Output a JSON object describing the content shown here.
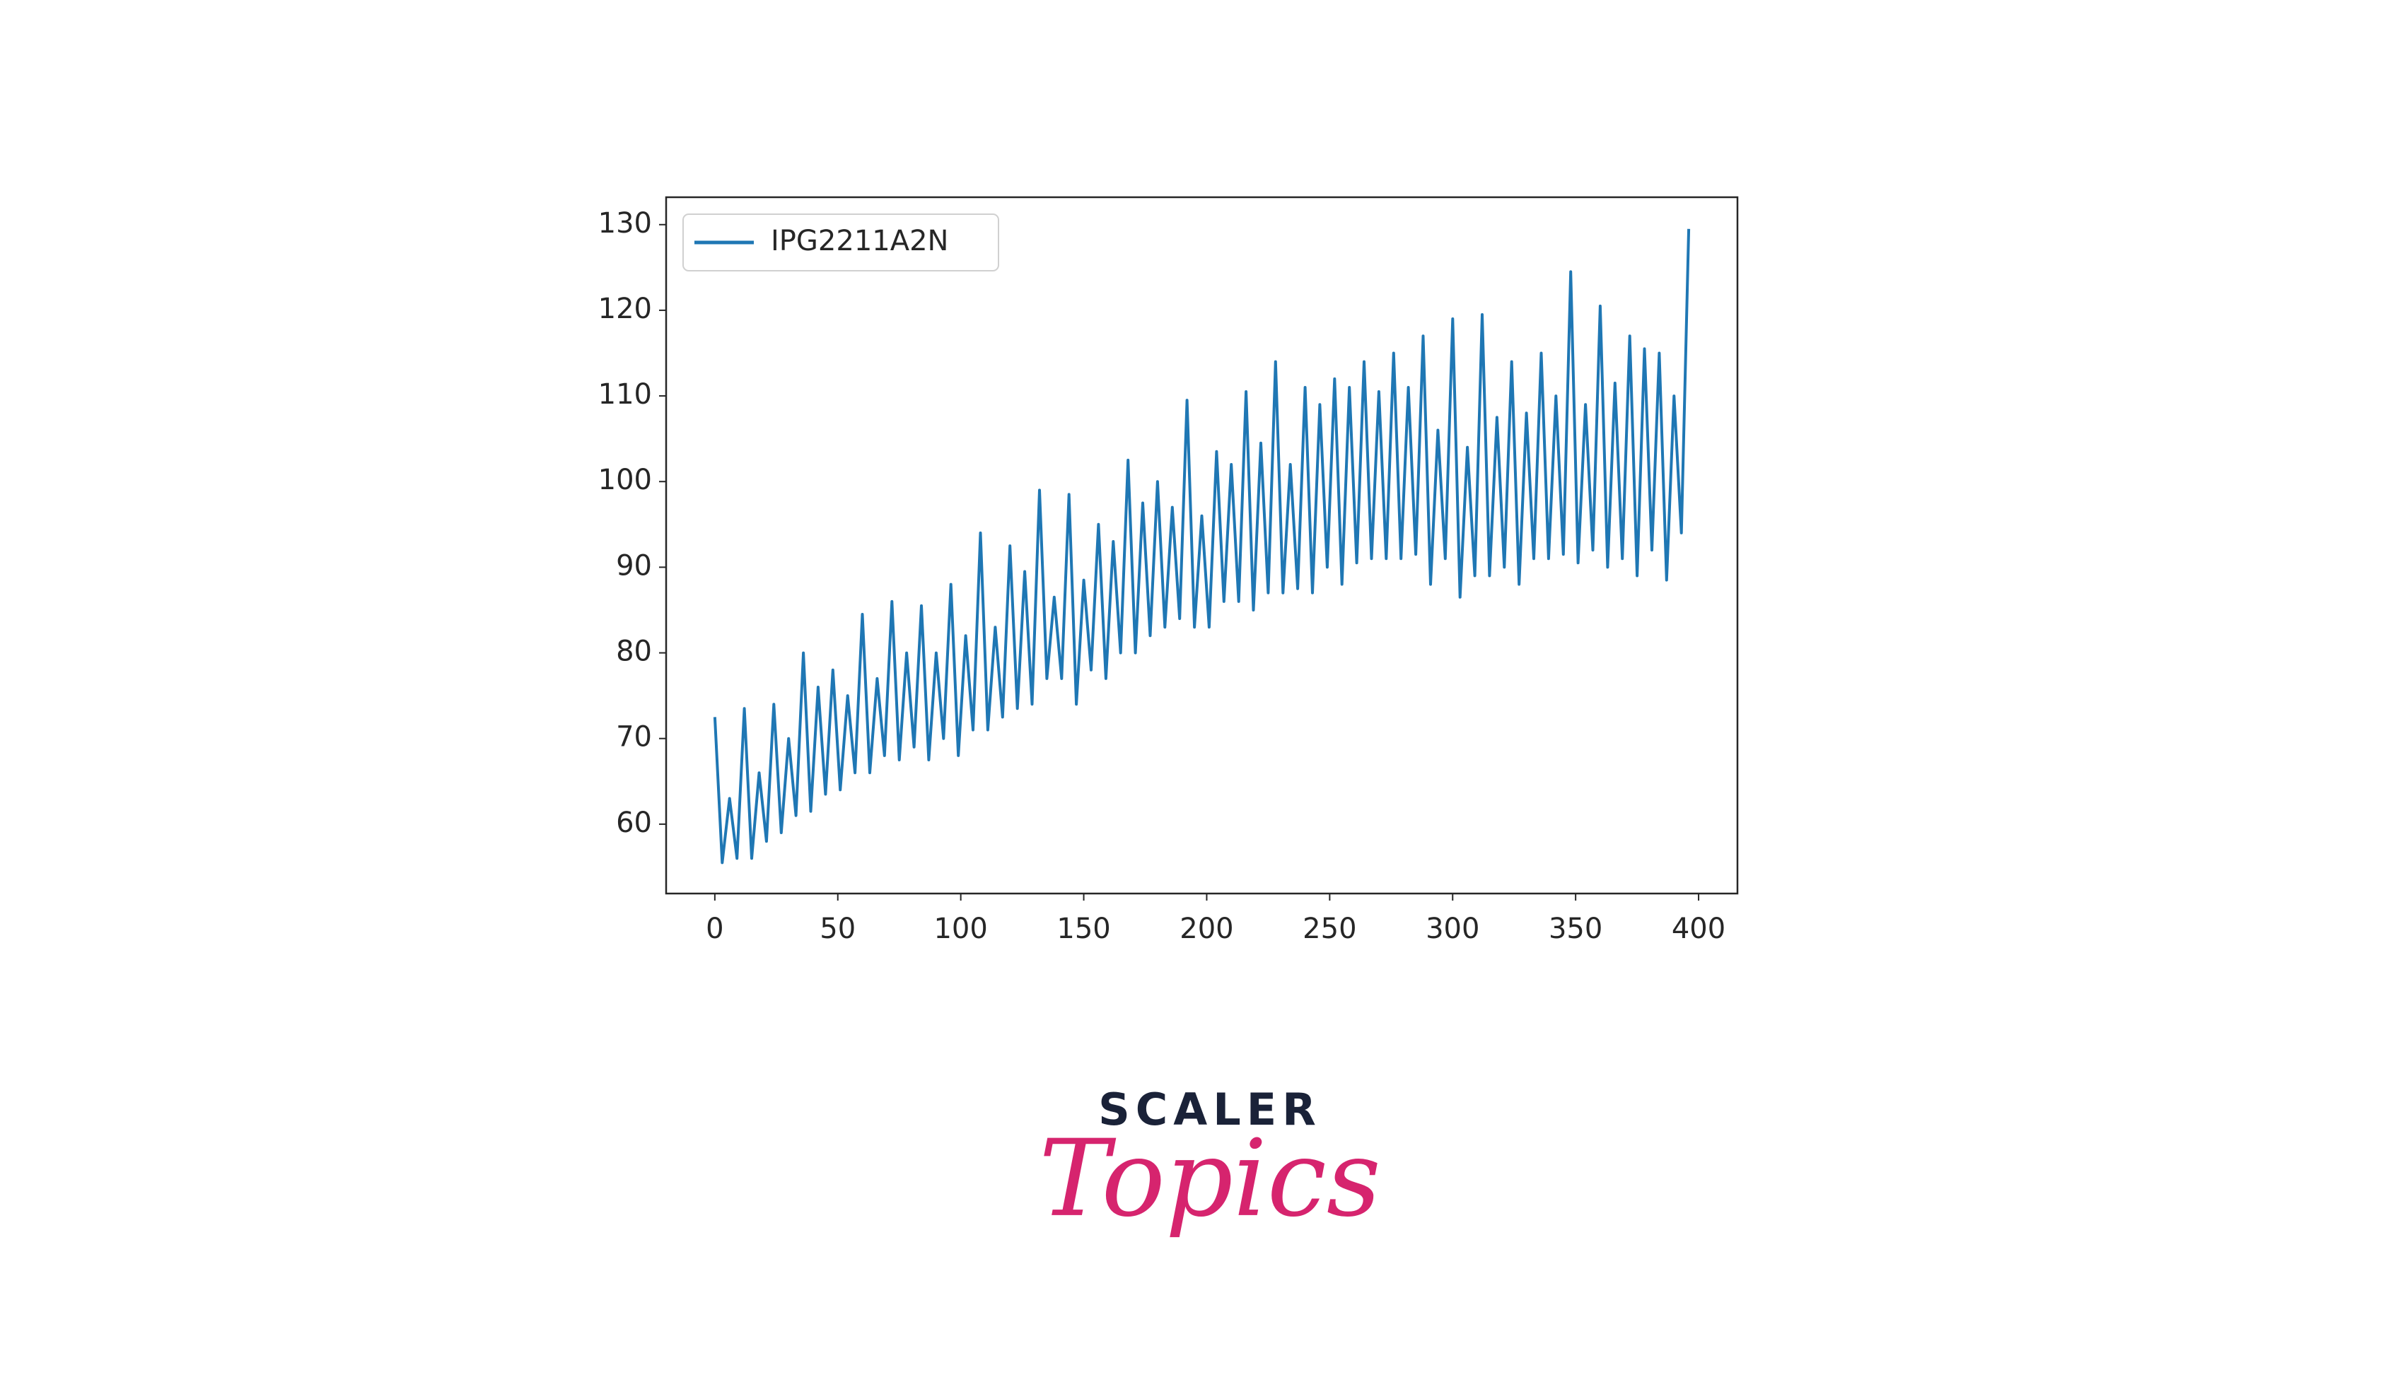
{
  "chart_data": {
    "type": "line",
    "x": [
      0,
      3,
      6,
      9,
      12,
      15,
      18,
      21,
      24,
      27,
      30,
      33,
      36,
      39,
      42,
      45,
      48,
      51,
      54,
      57,
      60,
      63,
      66,
      69,
      72,
      75,
      78,
      81,
      84,
      87,
      90,
      93,
      96,
      99,
      102,
      105,
      108,
      111,
      114,
      117,
      120,
      123,
      126,
      129,
      132,
      135,
      138,
      141,
      144,
      147,
      150,
      153,
      156,
      159,
      162,
      165,
      168,
      171,
      174,
      177,
      180,
      183,
      186,
      189,
      192,
      195,
      198,
      201,
      204,
      207,
      210,
      213,
      216,
      219,
      222,
      225,
      228,
      231,
      234,
      237,
      240,
      243,
      246,
      249,
      252,
      255,
      258,
      261,
      264,
      267,
      270,
      273,
      276,
      279,
      282,
      285,
      288,
      291,
      294,
      297,
      300,
      303,
      306,
      309,
      312,
      315,
      318,
      321,
      324,
      327,
      330,
      333,
      336,
      339,
      342,
      345,
      348,
      351,
      354,
      357,
      360,
      363,
      366,
      369,
      372,
      375,
      378,
      381,
      384,
      387,
      390,
      393,
      396
    ],
    "series": [
      {
        "name": "IPG2211A2N",
        "color": "#1f77b4",
        "values": [
          72.5,
          55.5,
          63,
          56,
          73.5,
          56,
          66,
          58,
          74,
          59,
          70,
          61,
          80,
          61.5,
          76,
          63.5,
          78,
          64,
          75,
          66,
          84.5,
          66,
          77,
          68,
          86,
          67.5,
          80,
          69,
          85.5,
          67.5,
          80,
          70,
          88,
          68,
          82,
          71,
          94,
          71,
          83,
          72.5,
          92.5,
          73.5,
          89.5,
          74,
          99,
          77,
          86.5,
          77,
          98.5,
          74,
          88.5,
          78,
          95,
          77,
          93,
          80,
          102.5,
          80,
          97.5,
          82,
          100,
          83,
          97,
          84,
          109.5,
          83,
          96,
          83,
          103.5,
          86,
          102,
          86,
          110.5,
          85,
          104.5,
          87,
          114,
          87,
          102,
          87.5,
          111,
          87,
          109,
          90,
          112,
          88,
          111,
          90.5,
          114,
          91,
          110.5,
          91,
          115,
          91,
          111,
          91.5,
          117,
          88,
          106,
          91,
          119,
          86.5,
          104,
          89,
          119.5,
          89,
          107.5,
          90,
          114,
          88,
          108,
          91,
          115,
          91,
          110,
          91.5,
          124.5,
          90.5,
          109,
          92,
          120.5,
          90,
          111.5,
          91,
          117,
          89,
          115.5,
          92,
          115,
          88.5,
          110,
          94,
          129.5
        ]
      }
    ],
    "xlim": [
      -19.8,
      415.8
    ],
    "ylim": [
      51.9,
      133.2
    ],
    "xticks": [
      0,
      50,
      100,
      150,
      200,
      250,
      300,
      350,
      400
    ],
    "yticks": [
      60,
      70,
      80,
      90,
      100,
      110,
      120,
      130
    ],
    "legend": "upper left"
  },
  "logo": {
    "line1": "SCALER",
    "line2": "Topics"
  }
}
